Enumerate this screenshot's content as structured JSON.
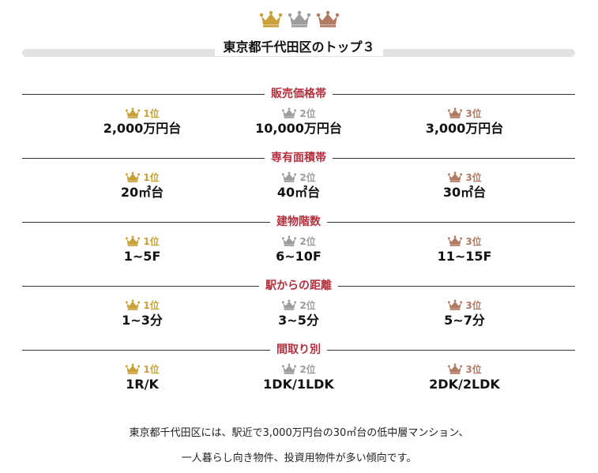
{
  "header": {
    "title": "東京都千代田区のトップ３",
    "crown_icons": [
      "gold-crown-icon",
      "silver-crown-icon",
      "bronze-crown-icon"
    ]
  },
  "colors": {
    "gold": "#c9a13b",
    "silver": "#9d9d9d",
    "bronze": "#b07a63",
    "section_label": "#b5303e"
  },
  "sections": [
    {
      "label": "販売価格帯",
      "ranks": [
        {
          "rank": "1位",
          "value": "2,000万円台"
        },
        {
          "rank": "2位",
          "value": "10,000万円台"
        },
        {
          "rank": "3位",
          "value": "3,000万円台"
        }
      ]
    },
    {
      "label": "専有面積帯",
      "ranks": [
        {
          "rank": "1位",
          "value": "20㎡台"
        },
        {
          "rank": "2位",
          "value": "40㎡台"
        },
        {
          "rank": "3位",
          "value": "30㎡台"
        }
      ]
    },
    {
      "label": "建物階数",
      "ranks": [
        {
          "rank": "1位",
          "value": "1~5F"
        },
        {
          "rank": "2位",
          "value": "6~10F"
        },
        {
          "rank": "3位",
          "value": "11~15F"
        }
      ]
    },
    {
      "label": "駅からの距離",
      "ranks": [
        {
          "rank": "1位",
          "value": "1~3分"
        },
        {
          "rank": "2位",
          "value": "3~5分"
        },
        {
          "rank": "3位",
          "value": "5~7分"
        }
      ]
    },
    {
      "label": "間取り別",
      "ranks": [
        {
          "rank": "1位",
          "value": "1R/K"
        },
        {
          "rank": "2位",
          "value": "1DK/1LDK"
        },
        {
          "rank": "3位",
          "value": "2DK/2LDK"
        }
      ]
    }
  ],
  "summary": {
    "line1": "東京都千代田区には、駅近で3,000万円台の30㎡台の低中層マンション、",
    "line2": "一人暮らし向き物件、投資用物件が多い傾向です。"
  }
}
